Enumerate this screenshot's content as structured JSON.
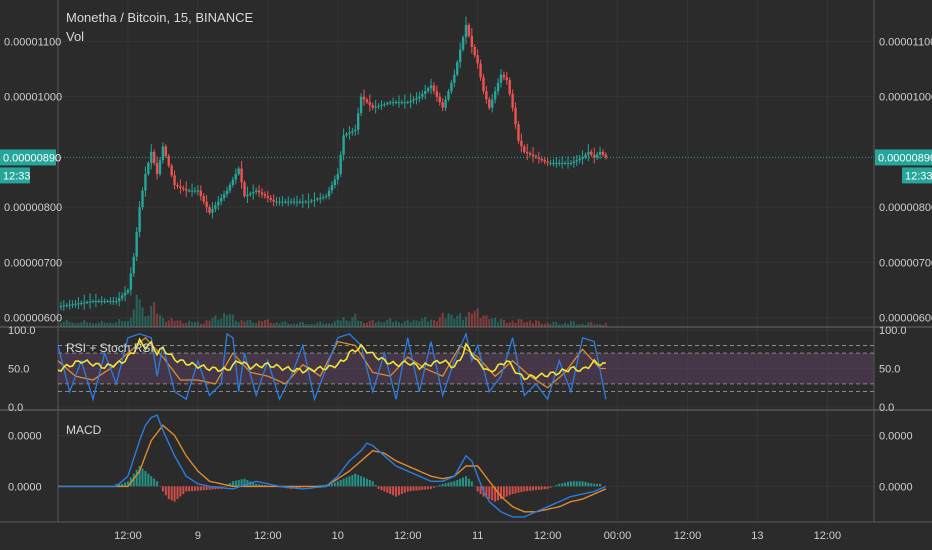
{
  "header": {
    "symbol_line": "Monetha / Bitcoin, 15, BINANCE",
    "volume_label": "Vol"
  },
  "colors": {
    "background": "#2b2b2b",
    "grid": "#353535",
    "axis_text": "#cfcfcf",
    "up": "#26a69a",
    "down": "#ef5350",
    "price_line": "#26a69a",
    "rsi": "#f0e43a",
    "stoch_k": "#2a7de1",
    "stoch_d": "#e08a2e",
    "macd": "#2a7de1",
    "signal": "#e08a2e",
    "rsi_band": "#5a3f5c"
  },
  "price_axis": {
    "ticks": [
      "0.00001100",
      "0.00001000",
      "0.00000800",
      "0.00000700",
      "0.00000600"
    ],
    "tick_values": [
      1.1e-05,
      1e-05,
      8e-06,
      7e-06,
      6e-06
    ],
    "current_price": "0.00000890",
    "current_value": 8.9e-06,
    "countdown": "12:33",
    "range": [
      5.83e-06,
      1.175e-05
    ]
  },
  "rsi_panel": {
    "title": "RSI + Stoch RSI",
    "ticks": [
      "100.0",
      "50.0",
      "0.0"
    ],
    "tick_values": [
      100,
      50,
      0
    ],
    "range": [
      -4,
      104
    ],
    "band": [
      30,
      70
    ],
    "dashed_levels": [
      20,
      30,
      70,
      80
    ]
  },
  "macd_panel": {
    "title": "MACD",
    "ticks": [
      "0.0000",
      "0.0000"
    ],
    "tick_values": [
      1e-07,
      0
    ],
    "range": [
      -7e-08,
      1.5e-07
    ]
  },
  "time_axis": {
    "labels": [
      "12:00",
      "9",
      "12:00",
      "10",
      "12:00",
      "11",
      "12:00",
      "00:00",
      "12:00",
      "13",
      "12:00"
    ],
    "label_hours": [
      12,
      24,
      36,
      48,
      60,
      72,
      84,
      96,
      108,
      120,
      132
    ],
    "range_hours": [
      0,
      140
    ],
    "last_bar_hour": 94
  },
  "chart_data": {
    "type": "candlestick",
    "title": "Monetha / Bitcoin, 15, BINANCE",
    "xlabel": "",
    "ylabel": "",
    "grid": true,
    "price_series": {
      "name": "Monetha / Bitcoin",
      "t": [
        0,
        6,
        10,
        12,
        13,
        14,
        15,
        16,
        17,
        18,
        20,
        22,
        24,
        26,
        29,
        31,
        32,
        34,
        37,
        40,
        43,
        46,
        48,
        49,
        51,
        52,
        54,
        57,
        60,
        62,
        64,
        66,
        68,
        70,
        71,
        72,
        73,
        74,
        75,
        76,
        77,
        78,
        79,
        80,
        82,
        84,
        86,
        88,
        90,
        91,
        92,
        93,
        94
      ],
      "close": [
        6.2e-06,
        6.3e-06,
        6.3e-06,
        6.5e-06,
        7.1e-06,
        8e-06,
        8.6e-06,
        9e-06,
        8.6e-06,
        9.1e-06,
        8.4e-06,
        8.3e-06,
        8.3e-06,
        7.9e-06,
        8.3e-06,
        8.7e-06,
        8.2e-06,
        8.3e-06,
        8.1e-06,
        8.1e-06,
        8.1e-06,
        8.2e-06,
        8.6e-06,
        9.3e-06,
        9.4e-06,
        1e-05,
        9.8e-06,
        9.9e-06,
        9.9e-06,
        1e-05,
        1.02e-05,
        9.8e-06,
        1.04e-05,
        1.13e-05,
        1.09e-05,
        1.06e-05,
        1.01e-05,
        9.8e-06,
        1.01e-05,
        1.04e-05,
        1.03e-05,
        9.8e-06,
        9.2e-06,
        9e-06,
        8.9e-06,
        8.8e-06,
        8.8e-06,
        8.8e-06,
        8.9e-06,
        9e-06,
        8.9e-06,
        9e-06,
        8.9e-06
      ]
    },
    "volume": {
      "t": [
        2,
        8,
        12,
        13,
        14,
        15,
        16,
        17,
        18,
        19,
        20,
        22,
        25,
        27,
        29,
        31,
        33,
        35,
        38,
        41,
        44,
        48,
        49,
        50,
        51,
        52,
        54,
        56,
        58,
        60,
        62,
        64,
        66,
        68,
        70,
        71,
        72,
        73,
        74,
        75,
        76,
        78,
        80,
        82,
        84,
        86,
        88,
        90,
        92,
        93
      ],
      "value": [
        1.2,
        1.0,
        1.5,
        4.5,
        6.5,
        2.5,
        5.5,
        3.2,
        2.0,
        1.8,
        1.5,
        1.2,
        1.0,
        2.2,
        3.0,
        1.6,
        1.3,
        1.5,
        1.0,
        0.9,
        0.8,
        1.2,
        2.6,
        1.8,
        2.2,
        1.5,
        1.2,
        1.6,
        1.4,
        1.2,
        2.0,
        1.5,
        2.5,
        3.0,
        2.0,
        4.8,
        3.5,
        2.2,
        2.8,
        1.8,
        1.5,
        1.3,
        1.6,
        1.2,
        1.0,
        0.9,
        1.1,
        0.8,
        0.9,
        0.7
      ]
    },
    "rsi": {
      "name": "RSI + Stoch RSI",
      "t": [
        0,
        4,
        8,
        11,
        13,
        14,
        15,
        16,
        17,
        18,
        20,
        23,
        26,
        29,
        31,
        33,
        36,
        39,
        42,
        45,
        47,
        49,
        50,
        52,
        54,
        56,
        58,
        60,
        62,
        64,
        66,
        68,
        69,
        70,
        71,
        72,
        73,
        74,
        75,
        76,
        77,
        78,
        79,
        80,
        82,
        84,
        86,
        88,
        90,
        92,
        94
      ],
      "value": [
        48,
        60,
        52,
        58,
        72,
        85,
        78,
        82,
        70,
        76,
        62,
        55,
        50,
        48,
        60,
        52,
        55,
        50,
        47,
        50,
        52,
        60,
        70,
        78,
        68,
        60,
        55,
        58,
        52,
        56,
        60,
        52,
        62,
        80,
        70,
        58,
        52,
        45,
        50,
        55,
        60,
        52,
        42,
        38,
        40,
        42,
        45,
        50,
        48,
        58,
        55
      ]
    },
    "stoch_k": {
      "t": [
        0,
        2,
        4,
        6,
        8,
        10,
        12,
        14,
        16,
        17,
        18,
        20,
        22,
        24,
        26,
        28,
        29,
        30,
        31,
        32,
        34,
        36,
        38,
        40,
        42,
        44,
        46,
        48,
        50,
        52,
        54,
        56,
        58,
        60,
        62,
        64,
        66,
        68,
        70,
        71,
        72,
        74,
        76,
        78,
        80,
        82,
        84,
        86,
        88,
        90,
        92,
        94
      ],
      "value": [
        80,
        20,
        60,
        10,
        70,
        30,
        90,
        95,
        90,
        40,
        80,
        20,
        10,
        60,
        15,
        30,
        95,
        90,
        20,
        70,
        15,
        60,
        10,
        40,
        80,
        10,
        50,
        90,
        95,
        80,
        20,
        70,
        10,
        90,
        20,
        85,
        15,
        60,
        95,
        60,
        80,
        20,
        40,
        90,
        15,
        30,
        10,
        60,
        20,
        90,
        85,
        10
      ]
    },
    "stoch_d": {
      "t": [
        0,
        3,
        6,
        9,
        12,
        15,
        18,
        21,
        24,
        27,
        30,
        33,
        36,
        39,
        42,
        45,
        48,
        51,
        54,
        57,
        60,
        63,
        66,
        69,
        72,
        75,
        78,
        81,
        84,
        87,
        90,
        93
      ],
      "value": [
        60,
        40,
        35,
        50,
        70,
        90,
        65,
        35,
        35,
        30,
        70,
        45,
        40,
        30,
        55,
        40,
        85,
        80,
        45,
        40,
        65,
        50,
        40,
        80,
        65,
        40,
        60,
        40,
        25,
        45,
        75,
        50
      ]
    },
    "macd": {
      "t": [
        0,
        6,
        10,
        12,
        14,
        15,
        16,
        17,
        18,
        20,
        22,
        24,
        26,
        30,
        34,
        38,
        42,
        46,
        48,
        50,
        52,
        53,
        54,
        56,
        58,
        60,
        62,
        64,
        66,
        68,
        70,
        71,
        72,
        73,
        74,
        76,
        78,
        80,
        82,
        84,
        86,
        88,
        90,
        92,
        94
      ],
      "value": [
        0,
        0,
        0,
        2e-08,
        9e-08,
        1.2e-07,
        1.35e-07,
        1.4e-07,
        1.1e-07,
        6e-08,
        2e-08,
        5e-09,
        0,
        -5e-09,
        1e-08,
        0,
        -5e-09,
        0,
        2e-08,
        5e-08,
        7e-08,
        8.5e-08,
        8e-08,
        6e-08,
        4e-08,
        3e-08,
        2e-08,
        1e-08,
        1e-08,
        2e-08,
        6e-08,
        5e-08,
        2e-08,
        -1e-08,
        -3e-08,
        -5e-08,
        -6e-08,
        -6e-08,
        -5e-08,
        -4e-08,
        -3e-08,
        -2e-08,
        -1.5e-08,
        -1e-08,
        0
      ]
    },
    "signal": {
      "t": [
        0,
        8,
        12,
        14,
        16,
        18,
        20,
        22,
        24,
        26,
        30,
        34,
        38,
        42,
        46,
        50,
        52,
        54,
        56,
        58,
        60,
        62,
        64,
        66,
        68,
        70,
        72,
        74,
        76,
        78,
        80,
        82,
        84,
        86,
        88,
        90,
        92,
        94
      ],
      "value": [
        0,
        0,
        0,
        3e-08,
        9e-08,
        1.2e-07,
        1e-07,
        6e-08,
        3e-08,
        1e-08,
        0,
        0,
        0,
        0,
        0,
        3e-08,
        5e-08,
        7e-08,
        6.5e-08,
        5e-08,
        4e-08,
        3e-08,
        2e-08,
        1.5e-08,
        2e-08,
        4e-08,
        4e-08,
        1e-08,
        -2e-08,
        -4e-08,
        -5e-08,
        -5e-08,
        -4.5e-08,
        -4e-08,
        -3e-08,
        -2.5e-08,
        -1.5e-08,
        -5e-09
      ]
    },
    "histogram": {
      "t": [
        11,
        12,
        13,
        14,
        15,
        16,
        17,
        18,
        19,
        20,
        21,
        22,
        28,
        30,
        32,
        34,
        40,
        47,
        48,
        49,
        50,
        51,
        52,
        53,
        54,
        55,
        56,
        57,
        58,
        60,
        64,
        66,
        68,
        69,
        70,
        71,
        72,
        73,
        74,
        75,
        76,
        77,
        78,
        80,
        84,
        86,
        88,
        90,
        92
      ],
      "value": [
        5e-09,
        1e-08,
        2.5e-08,
        4e-08,
        3e-08,
        2e-08,
        1e-08,
        -1e-08,
        -2.5e-08,
        -3e-08,
        -2e-08,
        -1e-08,
        -5e-09,
        1e-08,
        1.5e-08,
        5e-09,
        -5e-09,
        5e-09,
        1e-08,
        1.5e-08,
        2e-08,
        2.5e-08,
        2e-08,
        1.5e-08,
        1e-08,
        -5e-09,
        -1e-08,
        -1.5e-08,
        -2e-08,
        -1e-08,
        -5e-09,
        5e-09,
        1e-08,
        1.5e-08,
        2e-08,
        1e-08,
        -1e-08,
        -2e-08,
        -2.5e-08,
        -3e-08,
        -2.5e-08,
        -2e-08,
        -1.5e-08,
        -1e-08,
        -5e-09,
        5e-09,
        1e-08,
        1e-08,
        5e-09
      ]
    }
  }
}
